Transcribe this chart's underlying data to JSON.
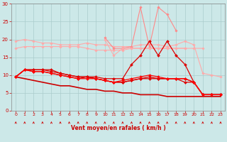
{
  "x": [
    0,
    1,
    2,
    3,
    4,
    5,
    6,
    7,
    8,
    9,
    10,
    11,
    12,
    13,
    14,
    15,
    16,
    17,
    18,
    19,
    20,
    21,
    22,
    23
  ],
  "series": [
    {
      "color": "#ffaaaa",
      "lw": 0.8,
      "marker": "D",
      "ms": 1.8,
      "values": [
        19.5,
        20.0,
        19.5,
        19.0,
        19.0,
        18.5,
        18.5,
        18.5,
        19.0,
        18.5,
        18.5,
        18.0,
        18.0,
        18.0,
        18.5,
        18.5,
        18.5,
        18.0,
        18.5,
        19.5,
        18.5,
        10.5,
        10.0,
        9.5
      ]
    },
    {
      "color": "#ffaaaa",
      "lw": 0.8,
      "marker": "D",
      "ms": 1.8,
      "values": [
        17.5,
        18.0,
        18.0,
        18.0,
        18.0,
        18.0,
        18.0,
        18.0,
        17.5,
        17.0,
        17.0,
        17.0,
        17.0,
        17.5,
        17.5,
        17.5,
        17.5,
        17.5,
        17.5,
        17.5,
        17.5,
        17.5,
        null,
        null
      ]
    },
    {
      "color": "#ff8888",
      "lw": 0.8,
      "marker": "D",
      "ms": 1.8,
      "values": [
        null,
        null,
        null,
        null,
        null,
        null,
        null,
        null,
        null,
        null,
        20.5,
        17.5,
        17.5,
        18.0,
        29.0,
        18.0,
        29.0,
        27.0,
        22.5,
        null,
        null,
        null,
        null,
        null
      ]
    },
    {
      "color": "#ffaaaa",
      "lw": 0.8,
      "marker": "D",
      "ms": 1.8,
      "values": [
        null,
        null,
        null,
        null,
        null,
        null,
        null,
        null,
        null,
        null,
        20.0,
        15.5,
        17.5,
        17.5,
        17.5,
        17.5,
        17.5,
        17.5,
        17.5,
        17.5,
        null,
        null,
        null,
        null
      ]
    },
    {
      "color": "#dd0000",
      "lw": 0.9,
      "marker": "D",
      "ms": 2.0,
      "values": [
        9.5,
        11.5,
        11.5,
        11.5,
        11.5,
        10.5,
        10.0,
        9.5,
        9.5,
        9.5,
        9.0,
        9.0,
        9.0,
        13.0,
        15.5,
        19.5,
        15.5,
        19.5,
        15.5,
        13.0,
        8.0,
        4.5,
        4.5,
        4.5
      ]
    },
    {
      "color": "#dd0000",
      "lw": 0.9,
      "marker": "D",
      "ms": 2.0,
      "values": [
        9.5,
        11.5,
        11.5,
        11.5,
        11.0,
        10.5,
        10.0,
        9.5,
        9.5,
        9.0,
        8.5,
        8.0,
        8.0,
        8.5,
        9.0,
        9.5,
        9.0,
        9.0,
        9.0,
        9.0,
        8.0,
        4.5,
        4.5,
        4.5
      ]
    },
    {
      "color": "#dd0000",
      "lw": 0.9,
      "marker": "D",
      "ms": 2.0,
      "values": [
        9.5,
        11.5,
        11.0,
        11.0,
        10.5,
        10.0,
        9.5,
        9.0,
        9.5,
        9.0,
        8.5,
        8.0,
        8.0,
        8.5,
        9.0,
        9.0,
        9.0,
        9.0,
        9.0,
        8.0,
        8.0,
        4.5,
        4.5,
        4.5
      ]
    },
    {
      "color": "#ff0000",
      "lw": 0.9,
      "marker": "D",
      "ms": 2.0,
      "values": [
        9.5,
        11.5,
        11.0,
        11.0,
        10.5,
        10.0,
        9.5,
        9.0,
        9.0,
        9.0,
        8.5,
        8.0,
        8.5,
        9.0,
        9.5,
        10.0,
        9.5,
        9.0,
        9.0,
        9.0,
        8.0,
        4.5,
        4.5,
        4.5
      ]
    },
    {
      "color": "#cc0000",
      "lw": 1.2,
      "marker": null,
      "ms": 0,
      "values": [
        9.5,
        9.0,
        8.5,
        8.0,
        7.5,
        7.0,
        7.0,
        6.5,
        6.0,
        6.0,
        5.5,
        5.5,
        5.0,
        5.0,
        4.5,
        4.5,
        4.5,
        4.0,
        4.0,
        4.0,
        4.0,
        4.0,
        4.0,
        4.0
      ]
    }
  ],
  "xlabel": "Vent moyen/en rafales ( km/h )",
  "xlim": [
    -0.5,
    23.5
  ],
  "ylim": [
    0,
    30
  ],
  "yticks": [
    0,
    5,
    10,
    15,
    20,
    25,
    30
  ],
  "xticks": [
    0,
    1,
    2,
    3,
    4,
    5,
    6,
    7,
    8,
    9,
    10,
    11,
    12,
    13,
    14,
    15,
    16,
    17,
    18,
    19,
    20,
    21,
    22,
    23
  ],
  "bg_color": "#cce8e8",
  "grid_color": "#aacccc",
  "tick_color": "#cc0000",
  "label_color": "#cc0000",
  "spine_color": "#888888"
}
